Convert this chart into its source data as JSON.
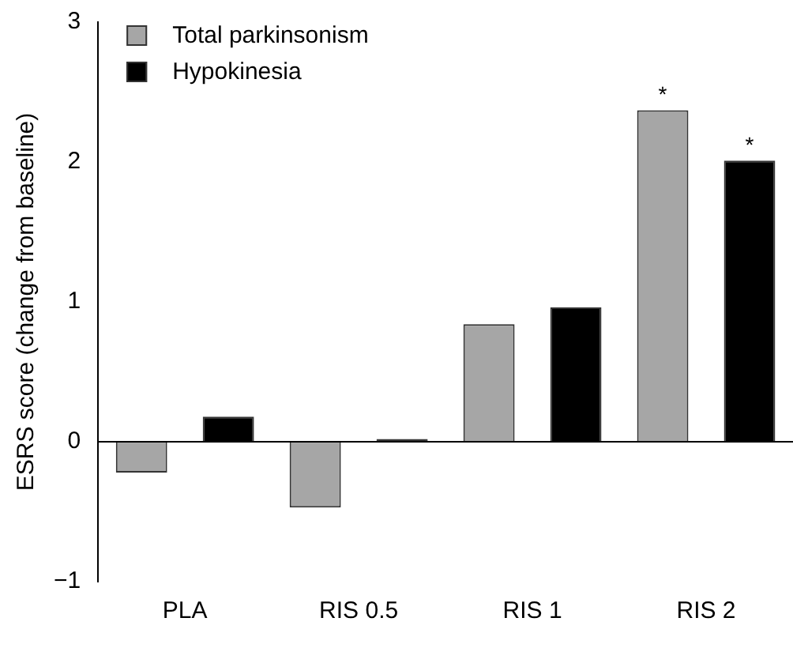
{
  "chart_data": {
    "type": "bar",
    "ylabel": "ESRS score (change from baseline)",
    "categories": [
      "PLA",
      "RIS 0.5",
      "RIS 1",
      "RIS 2"
    ],
    "series": [
      {
        "name": "Total parkinsonism",
        "color": "#a6a6a6",
        "values": [
          -0.22,
          -0.47,
          0.84,
          2.37
        ]
      },
      {
        "name": "Hypokinesia",
        "color": "#000000",
        "values": [
          0.18,
          0.02,
          0.96,
          2.01
        ]
      }
    ],
    "ylim": [
      -1,
      3
    ],
    "yticks": [
      {
        "value": -1,
        "label": "−1"
      },
      0,
      1,
      2,
      3
    ],
    "ref_lines": [
      {
        "axis": "y",
        "value": 0,
        "color": "#000000"
      }
    ],
    "annotations": [
      "*",
      "*"
    ],
    "grid": false,
    "legend": "top left"
  }
}
